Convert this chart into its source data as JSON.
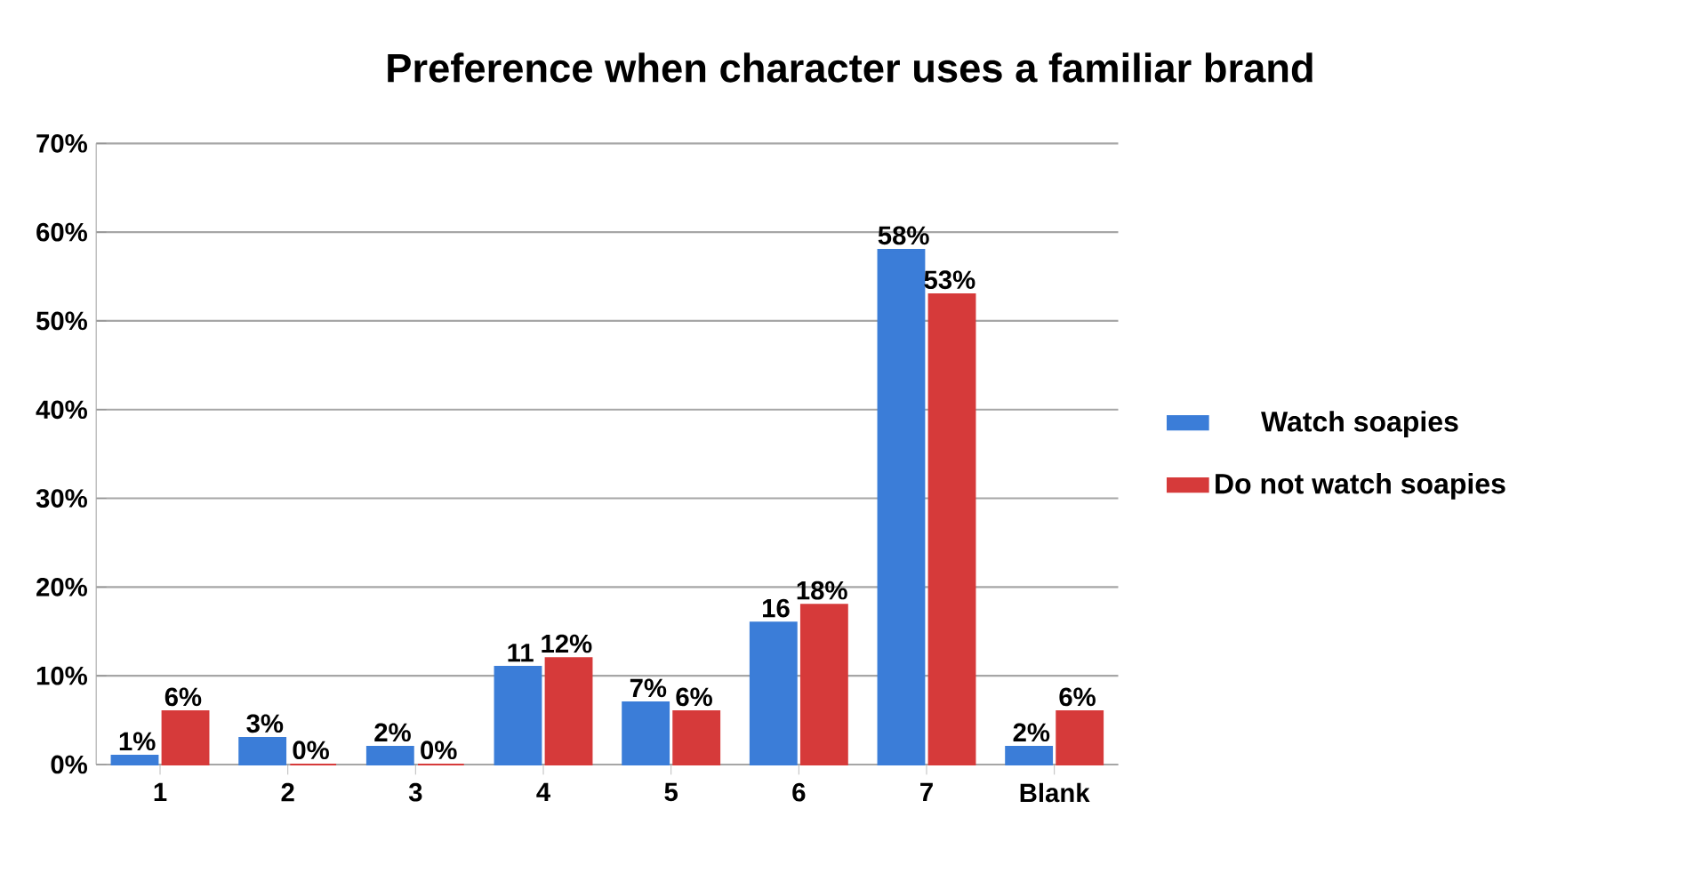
{
  "chart_data": {
    "type": "bar",
    "title": "Preference when character uses a familiar brand",
    "categories": [
      "1",
      "2",
      "3",
      "4",
      "5",
      "6",
      "7",
      "Blank"
    ],
    "series": [
      {
        "name": "Watch soapies",
        "color": "#3b7dd8",
        "values": [
          1,
          3,
          2,
          11,
          7,
          16,
          58,
          2
        ],
        "value_labels": [
          "1%",
          "3%",
          "2%",
          "11",
          "7%",
          "16",
          "58%",
          "2%"
        ]
      },
      {
        "name": "Do not watch soapies",
        "color": "#d63a3a",
        "values": [
          6,
          0,
          0,
          12,
          6,
          18,
          53,
          6
        ],
        "value_labels": [
          "6%",
          "0%",
          "0%",
          "12%",
          "6%",
          "18%",
          "53%",
          "6%"
        ]
      }
    ],
    "ylim": [
      0,
      70
    ],
    "yticks": [
      {
        "value": 0,
        "label": "0%"
      },
      {
        "value": 10,
        "label": "10%"
      },
      {
        "value": 20,
        "label": "20%"
      },
      {
        "value": 30,
        "label": "30%"
      },
      {
        "value": 40,
        "label": "40%"
      },
      {
        "value": 50,
        "label": "50%"
      },
      {
        "value": 60,
        "label": "60%"
      },
      {
        "value": 70,
        "label": "70%"
      }
    ],
    "grid": "y",
    "legend": "right"
  }
}
